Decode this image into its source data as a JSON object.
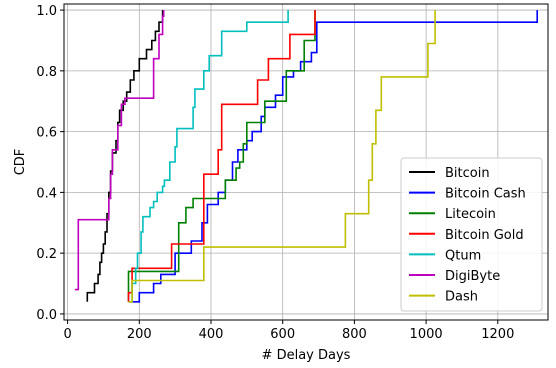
{
  "chart_data": {
    "type": "line",
    "step": true,
    "title": "",
    "xlabel": "# Delay Days",
    "ylabel": "CDF",
    "xlim": [
      -10,
      1340
    ],
    "ylim": [
      -0.02,
      1.02
    ],
    "xticks": [
      0,
      200,
      400,
      600,
      800,
      1000,
      1200
    ],
    "yticks": [
      0.0,
      0.2,
      0.4,
      0.6,
      0.8,
      1.0
    ],
    "xtick_labels": [
      "0",
      "200",
      "400",
      "600",
      "800",
      "1000",
      "1200"
    ],
    "ytick_labels": [
      "0.0",
      "0.2",
      "0.4",
      "0.6",
      "0.8",
      "1.0"
    ],
    "grid": true,
    "legend_position": "bottom-right",
    "series": [
      {
        "name": "Bitcoin",
        "color": "#000000",
        "points": [
          [
            55,
            0.04
          ],
          [
            55,
            0.07
          ],
          [
            75,
            0.07
          ],
          [
            75,
            0.1
          ],
          [
            85,
            0.13
          ],
          [
            90,
            0.17
          ],
          [
            95,
            0.2
          ],
          [
            100,
            0.23
          ],
          [
            105,
            0.27
          ],
          [
            110,
            0.33
          ],
          [
            115,
            0.4
          ],
          [
            120,
            0.47
          ],
          [
            125,
            0.53
          ],
          [
            135,
            0.57
          ],
          [
            140,
            0.63
          ],
          [
            145,
            0.67
          ],
          [
            155,
            0.7
          ],
          [
            165,
            0.73
          ],
          [
            175,
            0.77
          ],
          [
            185,
            0.8
          ],
          [
            200,
            0.84
          ],
          [
            220,
            0.87
          ],
          [
            235,
            0.9
          ],
          [
            245,
            0.93
          ],
          [
            255,
            0.96
          ],
          [
            265,
            1.0
          ]
        ]
      },
      {
        "name": "Bitcoin Cash",
        "color": "#0000ff",
        "points": [
          [
            170,
            0.04
          ],
          [
            200,
            0.04
          ],
          [
            200,
            0.07
          ],
          [
            240,
            0.07
          ],
          [
            240,
            0.1
          ],
          [
            260,
            0.1
          ],
          [
            260,
            0.13
          ],
          [
            280,
            0.13
          ],
          [
            300,
            0.2
          ],
          [
            330,
            0.2
          ],
          [
            345,
            0.24
          ],
          [
            375,
            0.3
          ],
          [
            390,
            0.36
          ],
          [
            420,
            0.4
          ],
          [
            440,
            0.44
          ],
          [
            460,
            0.5
          ],
          [
            475,
            0.54
          ],
          [
            500,
            0.57
          ],
          [
            515,
            0.6
          ],
          [
            540,
            0.65
          ],
          [
            550,
            0.68
          ],
          [
            580,
            0.72
          ],
          [
            600,
            0.78
          ],
          [
            630,
            0.8
          ],
          [
            650,
            0.83
          ],
          [
            680,
            0.86
          ],
          [
            695,
            0.96
          ],
          [
            1310,
            0.96
          ],
          [
            1310,
            1.0
          ]
        ]
      },
      {
        "name": "Litecoin",
        "color": "#008000",
        "points": [
          [
            170,
            0.04
          ],
          [
            170,
            0.14
          ],
          [
            310,
            0.14
          ],
          [
            310,
            0.3
          ],
          [
            330,
            0.35
          ],
          [
            350,
            0.38
          ],
          [
            420,
            0.38
          ],
          [
            440,
            0.44
          ],
          [
            470,
            0.48
          ],
          [
            480,
            0.5
          ],
          [
            490,
            0.56
          ],
          [
            500,
            0.63
          ],
          [
            540,
            0.63
          ],
          [
            550,
            0.7
          ],
          [
            600,
            0.7
          ],
          [
            610,
            0.8
          ],
          [
            650,
            0.8
          ],
          [
            660,
            0.9
          ],
          [
            690,
            0.95
          ],
          [
            690,
            1.0
          ]
        ]
      },
      {
        "name": "Bitcoin Gold",
        "color": "#ff0000",
        "points": [
          [
            170,
            0.04
          ],
          [
            170,
            0.07
          ],
          [
            180,
            0.15
          ],
          [
            280,
            0.15
          ],
          [
            290,
            0.23
          ],
          [
            380,
            0.23
          ],
          [
            380,
            0.46
          ],
          [
            400,
            0.46
          ],
          [
            420,
            0.54
          ],
          [
            430,
            0.69
          ],
          [
            510,
            0.69
          ],
          [
            530,
            0.77
          ],
          [
            560,
            0.84
          ],
          [
            600,
            0.84
          ],
          [
            620,
            0.92
          ],
          [
            690,
            0.92
          ],
          [
            690,
            1.0
          ]
        ]
      },
      {
        "name": "Qtum",
        "color": "#00bfbf",
        "points": [
          [
            175,
            0.04
          ],
          [
            180,
            0.1
          ],
          [
            190,
            0.15
          ],
          [
            195,
            0.2
          ],
          [
            205,
            0.27
          ],
          [
            210,
            0.32
          ],
          [
            230,
            0.35
          ],
          [
            240,
            0.37
          ],
          [
            250,
            0.4
          ],
          [
            265,
            0.42
          ],
          [
            270,
            0.44
          ],
          [
            285,
            0.5
          ],
          [
            300,
            0.55
          ],
          [
            305,
            0.61
          ],
          [
            345,
            0.61
          ],
          [
            350,
            0.68
          ],
          [
            355,
            0.74
          ],
          [
            380,
            0.8
          ],
          [
            395,
            0.85
          ],
          [
            420,
            0.85
          ],
          [
            430,
            0.93
          ],
          [
            490,
            0.93
          ],
          [
            500,
            0.96
          ],
          [
            600,
            0.96
          ],
          [
            615,
            1.0
          ]
        ]
      },
      {
        "name": "DigiByte",
        "color": "#bf00bf",
        "points": [
          [
            20,
            0.08
          ],
          [
            30,
            0.08
          ],
          [
            30,
            0.31
          ],
          [
            110,
            0.31
          ],
          [
            115,
            0.38
          ],
          [
            120,
            0.46
          ],
          [
            125,
            0.54
          ],
          [
            140,
            0.62
          ],
          [
            150,
            0.69
          ],
          [
            160,
            0.69
          ],
          [
            160,
            0.71
          ],
          [
            230,
            0.71
          ],
          [
            240,
            0.84
          ],
          [
            255,
            0.92
          ],
          [
            265,
            0.98
          ],
          [
            268,
            1.0
          ]
        ]
      },
      {
        "name": "Dash",
        "color": "#bfbf00",
        "points": [
          [
            170,
            0.04
          ],
          [
            180,
            0.07
          ],
          [
            180,
            0.11
          ],
          [
            380,
            0.11
          ],
          [
            380,
            0.22
          ],
          [
            775,
            0.22
          ],
          [
            775,
            0.33
          ],
          [
            835,
            0.33
          ],
          [
            840,
            0.44
          ],
          [
            850,
            0.56
          ],
          [
            860,
            0.67
          ],
          [
            875,
            0.78
          ],
          [
            1005,
            0.78
          ],
          [
            1005,
            0.89
          ],
          [
            1020,
            0.89
          ],
          [
            1025,
            1.0
          ]
        ]
      }
    ]
  }
}
